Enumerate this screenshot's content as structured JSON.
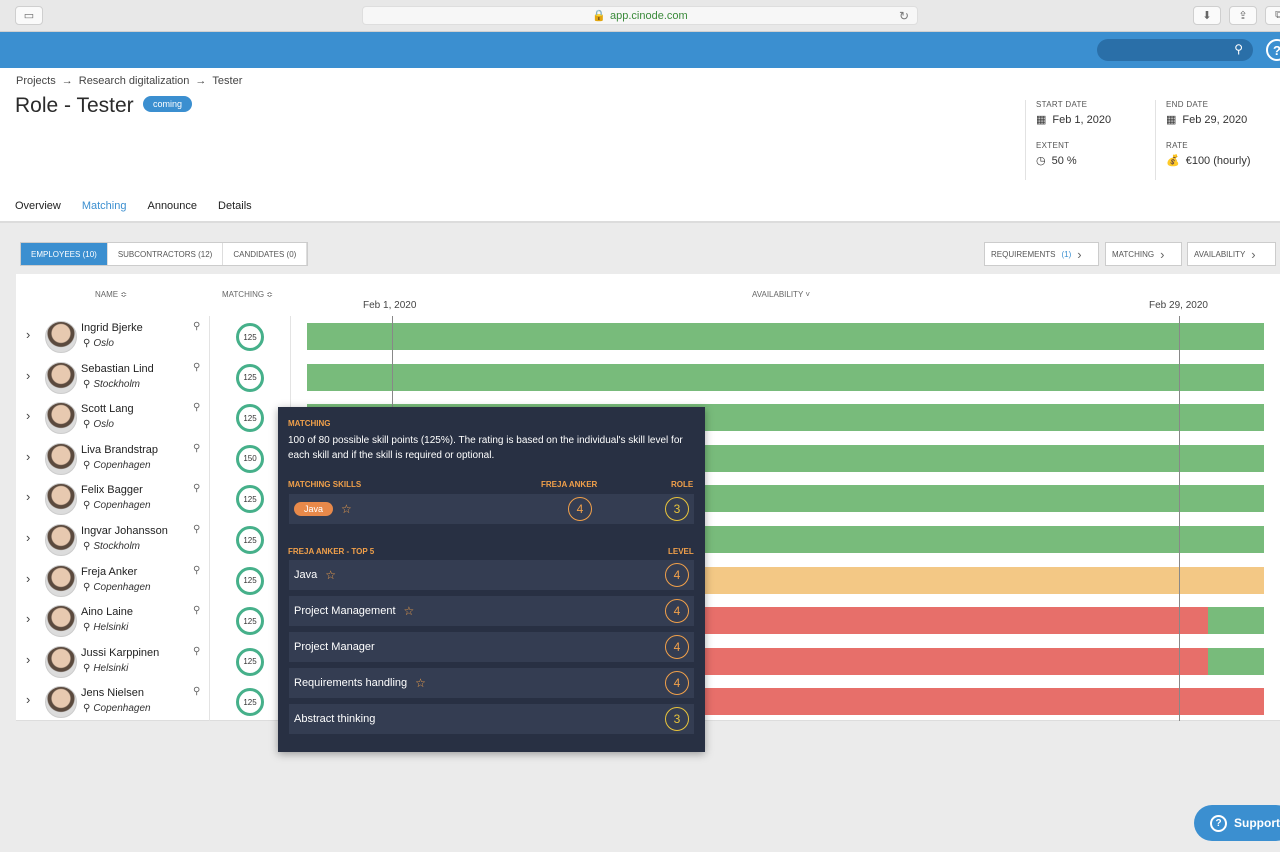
{
  "browser": {
    "url": "app.cinode.com"
  },
  "breadcrumb": {
    "projects": "Projects",
    "project": "Research digitalization",
    "current": "Tester",
    "sep": "→"
  },
  "page": {
    "title": "Role - Tester",
    "status": "coming"
  },
  "meta": {
    "start_label": "START DATE",
    "start_value": "Feb 1, 2020",
    "end_label": "END DATE",
    "end_value": "Feb 29, 2020",
    "extent_label": "EXTENT",
    "extent_value": "50 %",
    "rate_label": "RATE",
    "rate_value": "€100 (hourly)"
  },
  "tabs": [
    "Overview",
    "Matching",
    "Announce",
    "Details"
  ],
  "segments": [
    "EMPLOYEES (10)",
    "SUBCONTRACTORS (12)",
    "CANDIDATES (0)"
  ],
  "filters": {
    "requirements": "REQUIREMENTS",
    "requirements_count": "(1)",
    "matching": "MATCHING",
    "availability": "AVAILABILITY"
  },
  "grid": {
    "name_header": "NAME ≎",
    "matching_header": "MATCHING ≎",
    "availability_header": "AVAILABILITY ˅",
    "date_start": "Feb 1, 2020",
    "date_end": "Feb 29, 2020"
  },
  "employees": [
    {
      "name": "Ingrid Bjerke",
      "location": "Oslo",
      "score": "125",
      "availability": [
        [
          "g",
          1.0
        ]
      ]
    },
    {
      "name": "Sebastian Lind",
      "location": "Stockholm",
      "score": "125",
      "availability": [
        [
          "g",
          1.0
        ]
      ]
    },
    {
      "name": "Scott Lang",
      "location": "Oslo",
      "score": "125",
      "availability": [
        [
          "g",
          1.0
        ]
      ]
    },
    {
      "name": "Liva Brandstrap",
      "location": "Copenhagen",
      "score": "150",
      "availability": [
        [
          "g",
          1.0
        ]
      ]
    },
    {
      "name": "Felix Bagger",
      "location": "Copenhagen",
      "score": "125",
      "availability": [
        [
          "g",
          1.0
        ]
      ]
    },
    {
      "name": "Ingvar Johansson",
      "location": "Stockholm",
      "score": "125",
      "availability": [
        [
          "g",
          1.0
        ]
      ]
    },
    {
      "name": "Freja Anker",
      "location": "Copenhagen",
      "score": "125",
      "availability": [
        [
          "o",
          1.0
        ]
      ]
    },
    {
      "name": "Aino Laine",
      "location": "Helsinki",
      "score": "125",
      "availability": [
        [
          "r",
          0.942
        ],
        [
          "g",
          0.058
        ]
      ]
    },
    {
      "name": "Jussi Karppinen",
      "location": "Helsinki",
      "score": "125",
      "availability": [
        [
          "r",
          0.942
        ],
        [
          "g",
          0.058
        ]
      ]
    },
    {
      "name": "Jens Nielsen",
      "location": "Copenhagen",
      "score": "125",
      "availability": [
        [
          "r",
          1.0
        ]
      ]
    }
  ],
  "tooltip": {
    "title": "MATCHING",
    "description": "100 of 80 possible skill points (125%). The rating is based on the individual's skill level for each skill and if the skill is required or optional.",
    "skills_header": "MATCHING SKILLS",
    "person_header": "FREJA ANKER",
    "role_header": "ROLE",
    "matching_skill": {
      "name": "Java",
      "person_level": "4",
      "role_level": "3"
    },
    "top_header": "FREJA ANKER - TOP 5",
    "level_header": "LEVEL",
    "top_skills": [
      {
        "name": "Java",
        "level": "4"
      },
      {
        "name": "Project Management",
        "level": "4"
      },
      {
        "name": "Project Manager",
        "level": "4"
      },
      {
        "name": "Requirements handling",
        "level": "4"
      },
      {
        "name": "Abstract thinking",
        "level": "3"
      }
    ]
  },
  "support": {
    "label": "Support"
  }
}
